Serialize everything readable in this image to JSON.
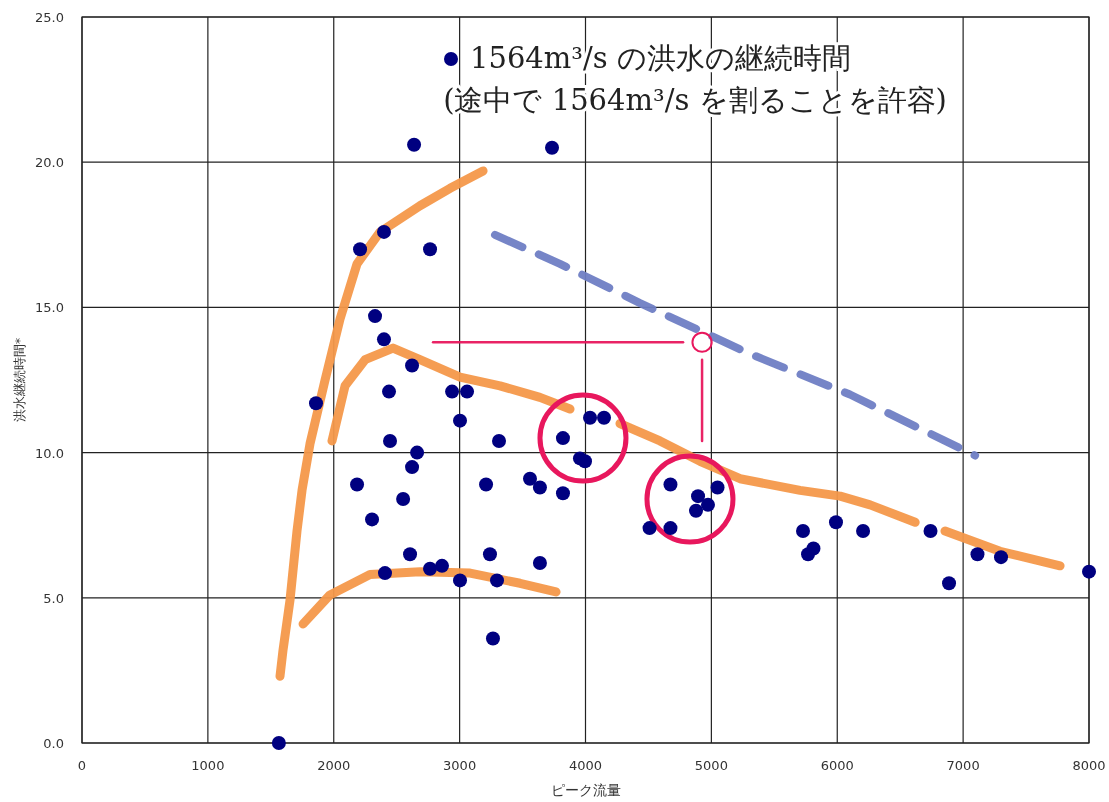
{
  "chart_data": {
    "type": "scatter",
    "xlabel": "ピーク流量",
    "ylabel": "洪水継続時間*",
    "xlim": [
      0,
      8000
    ],
    "xticks": [
      0,
      1000,
      2000,
      3000,
      4000,
      5000,
      6000,
      7000,
      8000
    ],
    "ylim": [
      0,
      25
    ],
    "yticks": [
      {
        "value": 0,
        "label": "0.0"
      },
      {
        "value": 5,
        "label": "5.0"
      },
      {
        "value": 10,
        "label": "10.0"
      },
      {
        "value": 15,
        "label": "15.0"
      },
      {
        "value": 20,
        "label": "20.0"
      },
      {
        "value": 25,
        "label": "25.0"
      }
    ],
    "grid": true,
    "legend": "top",
    "annotations": [
      "(途中で 1564m³/s を割ることを許容)"
    ],
    "series": [
      {
        "name": "1564m³/s の洪水の継続時間",
        "marker": "circle",
        "color": "#000080",
        "x": [
          1564,
          2638,
          3734,
          2209,
          2399,
          2765,
          2328,
          2399,
          2622,
          2439,
          2940,
          3059,
          1859,
          3003,
          2447,
          2662,
          3313,
          2185,
          2622,
          3210,
          2551,
          2304,
          3559,
          3638,
          3821,
          2606,
          2765,
          2860,
          2407,
          3003,
          3241,
          3297,
          3638,
          3265,
          3821,
          3956,
          3996,
          4036,
          4147,
          4675,
          4894,
          5049,
          4973,
          4878,
          4509,
          4675,
          5728,
          5990,
          6205,
          5811,
          5768,
          6741,
          7114,
          7301,
          6888,
          8000
        ],
        "values": [
          0,
          20.6,
          20.5,
          17.0,
          17.6,
          17.0,
          14.7,
          13.9,
          13.0,
          12.1,
          12.1,
          12.1,
          11.7,
          11.1,
          10.4,
          10.0,
          10.4,
          8.9,
          9.5,
          8.9,
          8.4,
          7.7,
          9.1,
          8.8,
          8.6,
          6.5,
          6.0,
          6.1,
          5.85,
          5.6,
          6.5,
          5.6,
          6.2,
          3.6,
          10.5,
          9.8,
          9.7,
          11.2,
          11.2,
          8.9,
          8.5,
          8.8,
          8.2,
          8.0,
          7.4,
          7.4,
          7.3,
          7.6,
          7.3,
          6.7,
          6.5,
          7.3,
          6.5,
          6.4,
          5.5,
          5.9
        ]
      },
      {
        "type": "line",
        "color": "#f4984a",
        "line_style": "solid",
        "x": [
          1573,
          1597,
          1652,
          1708,
          1748,
          1811,
          1931,
          2050,
          2185,
          2368,
          2685,
          2924,
          3186
        ],
        "values": [
          2.3,
          3.2,
          4.9,
          7.3,
          8.7,
          10.3,
          12.5,
          14.6,
          16.5,
          17.6,
          18.5,
          19.1,
          19.7
        ]
      },
      {
        "type": "line",
        "color": "#f4984a",
        "line_style": "solid",
        "x": [
          1986,
          2090,
          2249,
          2471,
          2685,
          3003,
          3321,
          3638,
          3877
        ],
        "values": [
          10.4,
          12.3,
          13.2,
          13.6,
          13.2,
          12.6,
          12.3,
          11.9,
          11.5
        ]
      },
      {
        "type": "line",
        "color": "#f4984a",
        "line_style": "solid",
        "x": [
          1756,
          1970,
          2288,
          2685,
          3083,
          3480,
          3766
        ],
        "values": [
          4.1,
          5.1,
          5.8,
          5.9,
          5.85,
          5.5,
          5.2
        ]
      },
      {
        "type": "line",
        "color": "#f4984a",
        "line_style": "solid",
        "x": [
          4274,
          4592,
          4910,
          5228,
          5705,
          6023,
          6261,
          6619
        ],
        "values": [
          11.0,
          10.4,
          9.7,
          9.1,
          8.7,
          8.5,
          8.2,
          7.6
        ]
      },
      {
        "type": "line",
        "color": "#f4984a",
        "line_style": "solid",
        "x": [
          6856,
          7293,
          7770
        ],
        "values": [
          7.3,
          6.6,
          6.1
        ]
      },
      {
        "type": "line",
        "color": "#6f7ec4",
        "line_style": "dashed",
        "x": [
          3281,
          3797,
          4433,
          5307,
          6101,
          7095
        ],
        "values": [
          17.5,
          16.5,
          15.15,
          13.4,
          12.0,
          9.9
        ]
      },
      {
        "type": "line",
        "color": "#e8175d",
        "line_style": "solid",
        "x": [
          2789,
          4775
        ],
        "values": [
          13.8,
          13.8
        ]
      },
      {
        "type": "line",
        "color": "#e8175d",
        "line_style": "solid",
        "x": [
          4926,
          4926
        ],
        "values": [
          13.2,
          10.4
        ]
      },
      {
        "type": "bubble",
        "color": "#e8175d",
        "x": [
          3980,
          4830,
          4926
        ],
        "values": [
          10.5,
          8.4,
          13.8
        ],
        "sizes": [
          1,
          1,
          0.05
        ]
      }
    ]
  }
}
